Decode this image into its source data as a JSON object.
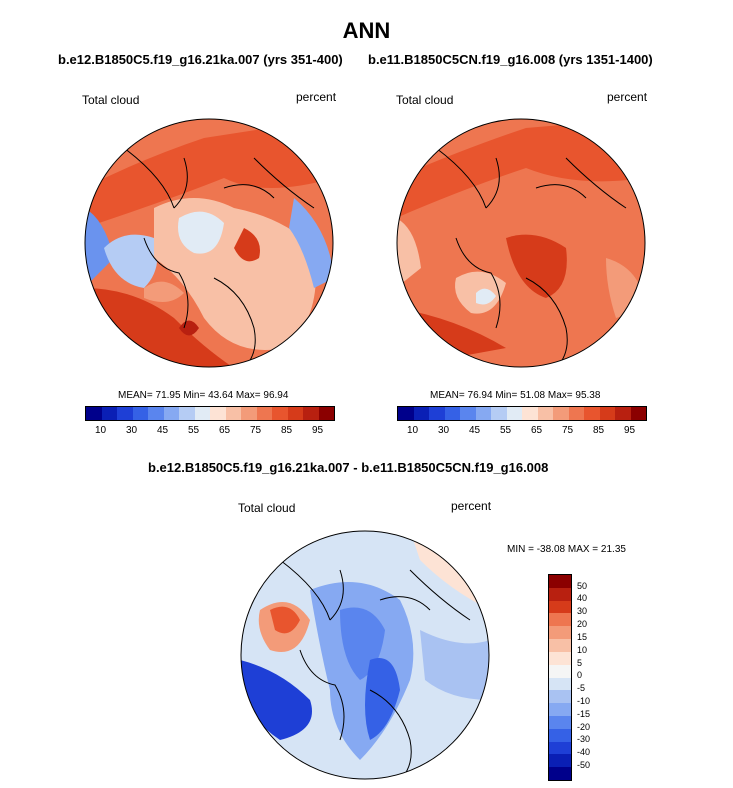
{
  "title": "ANN",
  "subtitles": {
    "left": "b.e12.B1850C5.f19_g16.21ka.007 (yrs 351-400)",
    "right": "b.e11.B1850C5CN.f19_g16.008 (yrs 1351-1400)",
    "diff": "b.e12.B1850C5.f19_g16.21ka.007 - b.e11.B1850C5CN.f19_g16.008"
  },
  "panels": {
    "left": {
      "variable": "Total cloud",
      "units": "percent",
      "mean_label": "MEAN=",
      "mean": "71.95",
      "min_label": "Min=",
      "min": "43.64",
      "max_label": "Max=",
      "max": "96.94"
    },
    "right": {
      "variable": "Total cloud",
      "units": "percent",
      "mean_label": "MEAN=",
      "mean": "76.94",
      "min_label": "Min=",
      "min": "51.08",
      "max_label": "Max=",
      "max": "95.38"
    },
    "diff": {
      "variable": "Total cloud",
      "units": "percent",
      "minmax": "MIN = -38.08 MAX =  21.35"
    }
  },
  "colorbar_abs": {
    "colors": [
      "#00008b",
      "#0a1fb5",
      "#1e3fd6",
      "#3561e6",
      "#5a85ee",
      "#86a9f2",
      "#b5ccf4",
      "#e1ebf5",
      "#fde3d5",
      "#f8c0a6",
      "#f39b79",
      "#ee7650",
      "#e8552e",
      "#d63b1a",
      "#b82010",
      "#8b0000"
    ],
    "ticks": [
      "10",
      "30",
      "45",
      "55",
      "65",
      "75",
      "85",
      "95"
    ]
  },
  "colorbar_diff": {
    "colors": [
      "#8b0000",
      "#b82010",
      "#d63b1a",
      "#ee7650",
      "#f39b79",
      "#f8c0a6",
      "#fde3d5",
      "#f5f5f5",
      "#d6e4f5",
      "#a9c2f2",
      "#86a9f2",
      "#5a85ee",
      "#3561e6",
      "#1e3fd6",
      "#0a1fb5",
      "#00008b"
    ],
    "ticks": [
      "50",
      "40",
      "30",
      "20",
      "15",
      "10",
      "5",
      "0",
      "-5",
      "-10",
      "-15",
      "-20",
      "-30",
      "-40",
      "-50"
    ]
  }
}
